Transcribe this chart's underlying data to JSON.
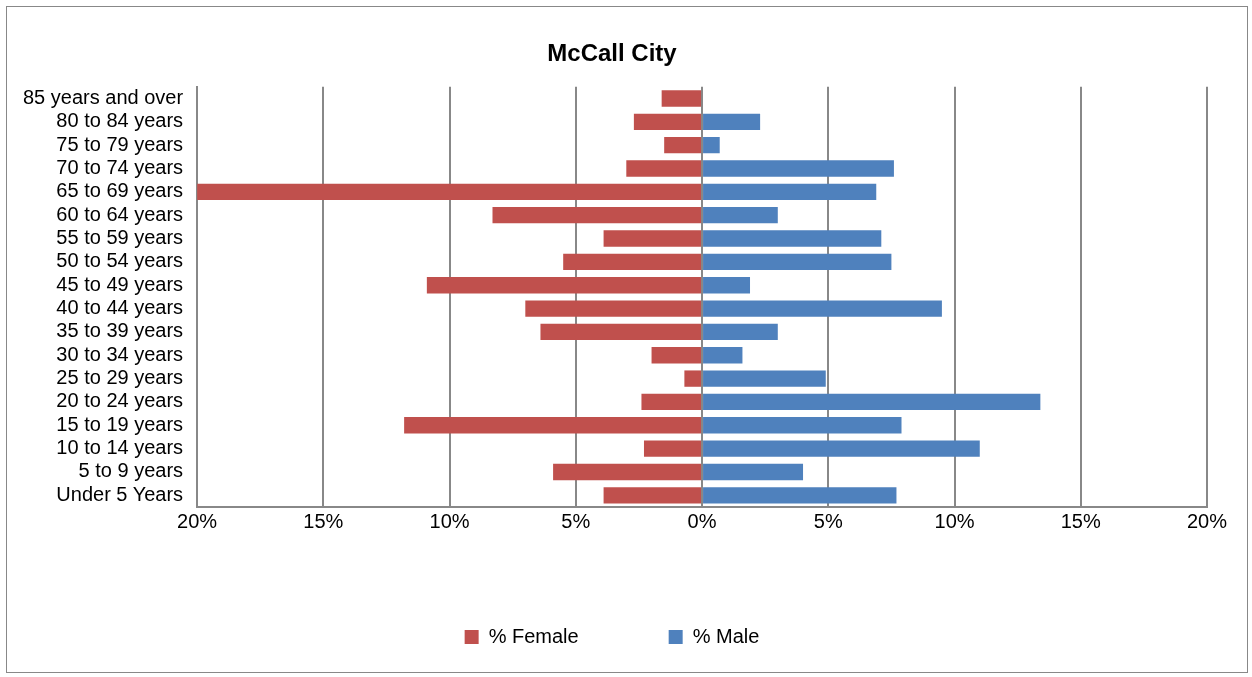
{
  "chart_data": {
    "type": "bar",
    "orientation": "horizontal",
    "stacked": true,
    "title": "McCall City",
    "categories": [
      "85 years and over",
      "80 to 84 years",
      "75 to 79 years",
      "70 to 74 years",
      "65 to 69 years",
      "60 to 64 years",
      "55 to 59 years",
      "50 to 54 years",
      "45 to 49 years",
      "40 to 44 years",
      "35 to 39 years",
      "30 to 34 years",
      "25 to 29 years",
      "20 to 24 years",
      "15 to 19 years",
      "10 to 14 years",
      "5 to 9 years",
      "Under 5 Years"
    ],
    "series": [
      {
        "name": "% Female",
        "color": "#c0504d",
        "values": [
          -1.6,
          -2.7,
          -1.5,
          -3.0,
          -20.0,
          -8.3,
          -3.9,
          -5.5,
          -10.9,
          -7.0,
          -6.4,
          -2.0,
          -0.7,
          -2.4,
          -11.8,
          -2.3,
          -5.9,
          -3.9
        ]
      },
      {
        "name": "% Male",
        "color": "#4f81bd",
        "values": [
          0,
          2.3,
          0.7,
          7.6,
          6.9,
          3.0,
          7.1,
          7.5,
          1.9,
          9.5,
          3.0,
          1.6,
          4.9,
          13.4,
          7.9,
          11.0,
          4.0,
          7.7
        ]
      }
    ],
    "xlim": [
      -20,
      20
    ],
    "xticks": [
      {
        "value": -20,
        "label": "20%"
      },
      {
        "value": -15,
        "label": "15%"
      },
      {
        "value": -10,
        "label": "10%"
      },
      {
        "value": -5,
        "label": "5%"
      },
      {
        "value": 0,
        "label": "0%"
      },
      {
        "value": 5,
        "label": "5%"
      },
      {
        "value": 10,
        "label": "10%"
      },
      {
        "value": 15,
        "label": "15%"
      },
      {
        "value": 20,
        "label": "20%"
      }
    ],
    "grid": "x",
    "legend": "bottom"
  }
}
